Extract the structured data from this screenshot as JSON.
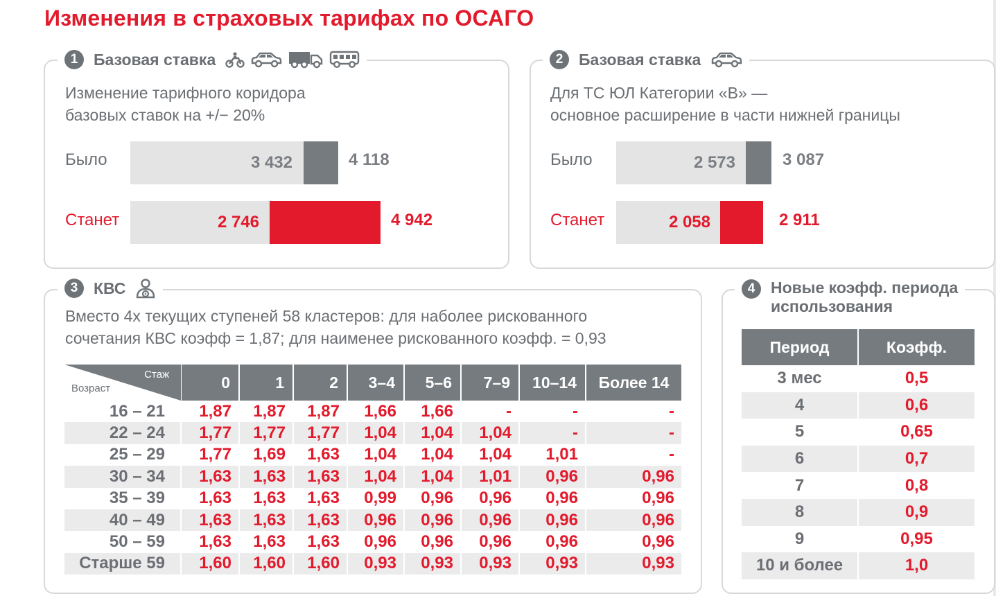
{
  "title": "Изменения в страховых тарифах по ОСАГО",
  "panel1": {
    "number": "1",
    "title": "Базовая ставка",
    "icons": [
      "motorcycle-icon",
      "car-icon",
      "truck-icon",
      "bus-icon"
    ],
    "desc_line1": "Изменение тарифного коридора",
    "desc_line2": "базовых ставок на +/− 20%",
    "row_before": {
      "label": "Было",
      "min": "3 432",
      "max": "4 118"
    },
    "row_after": {
      "label": "Станет",
      "min": "2 746",
      "max": "4 942"
    }
  },
  "panel2": {
    "number": "2",
    "title": "Базовая ставка",
    "icons": [
      "car-icon"
    ],
    "desc_line1": "Для ТС ЮЛ Категории «В» —",
    "desc_line2": "основное расширение в части нижней границы",
    "row_before": {
      "label": "Было",
      "min": "2 573",
      "max": "3 087"
    },
    "row_after": {
      "label": "Станет",
      "min": "2 058",
      "max": "2 911"
    }
  },
  "panel3": {
    "number": "3",
    "title": "КВС",
    "icons": [
      "driver-icon"
    ],
    "desc_line1": "Вместо 4х текущих ступеней 58 кластеров: для наболее рискованного",
    "desc_line2": "сочетания КВС коэфф = 1,87; для наименее рискованного коэфф. = 0,93",
    "corner_top": "Стаж",
    "corner_bottom": "Возраст",
    "columns": [
      "0",
      "1",
      "2",
      "3–4",
      "5–6",
      "7–9",
      "10–14",
      "Более 14"
    ],
    "rows": [
      {
        "age": "16 – 21",
        "values": [
          "1,87",
          "1,87",
          "1,87",
          "1,66",
          "1,66",
          "-",
          "-",
          "-"
        ]
      },
      {
        "age": "22 – 24",
        "values": [
          "1,77",
          "1,77",
          "1,77",
          "1,04",
          "1,04",
          "1,04",
          "-",
          "-"
        ]
      },
      {
        "age": "25 – 29",
        "values": [
          "1,77",
          "1,69",
          "1,63",
          "1,04",
          "1,04",
          "1,04",
          "1,01",
          "-"
        ]
      },
      {
        "age": "30 – 34",
        "values": [
          "1,63",
          "1,63",
          "1,63",
          "1,04",
          "1,04",
          "1,01",
          "0,96",
          "0,96"
        ]
      },
      {
        "age": "35 – 39",
        "values": [
          "1,63",
          "1,63",
          "1,63",
          "0,99",
          "0,96",
          "0,96",
          "0,96",
          "0,96"
        ]
      },
      {
        "age": "40 – 49",
        "values": [
          "1,63",
          "1,63",
          "1,63",
          "0,96",
          "0,96",
          "0,96",
          "0,96",
          "0,96"
        ]
      },
      {
        "age": "50 – 59",
        "values": [
          "1,63",
          "1,63",
          "1,63",
          "0,96",
          "0,96",
          "0,96",
          "0,96",
          "0,96"
        ]
      },
      {
        "age": "Старше 59",
        "values": [
          "1,60",
          "1,60",
          "1,60",
          "0,93",
          "0,93",
          "0,93",
          "0,93",
          "0,93"
        ]
      }
    ]
  },
  "panel4": {
    "number": "4",
    "title_line1": "Новые коэфф. периода",
    "title_line2": "использования",
    "col_period": "Период",
    "col_coef": "Коэфф.",
    "rows": [
      {
        "period": "3 мес",
        "coef": "0,5"
      },
      {
        "period": "4",
        "coef": "0,6"
      },
      {
        "period": "5",
        "coef": "0,65"
      },
      {
        "period": "6",
        "coef": "0,7"
      },
      {
        "period": "7",
        "coef": "0,8"
      },
      {
        "period": "8",
        "coef": "0,9"
      },
      {
        "period": "9",
        "coef": "0,95"
      },
      {
        "period": "10 и более",
        "coef": "1,0"
      }
    ]
  },
  "colors": {
    "accent": "#e21a2c",
    "gray": "#767b7f",
    "light": "#e4e4e5",
    "text": "#6b6f73"
  }
}
